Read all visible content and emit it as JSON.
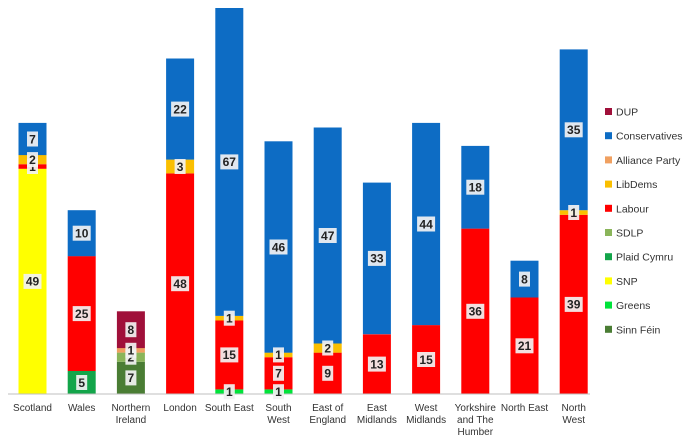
{
  "chart_data": {
    "type": "bar",
    "stacked": true,
    "categories": [
      [
        "Scotland"
      ],
      [
        "Wales"
      ],
      [
        "Northern",
        "Ireland"
      ],
      [
        "London"
      ],
      [
        "South East"
      ],
      [
        "South",
        "West"
      ],
      [
        "East of",
        "England"
      ],
      [
        "East",
        "Midlands"
      ],
      [
        "West",
        "Midlands"
      ],
      [
        "Yorkshire",
        "and The",
        "Humber"
      ],
      [
        "North East"
      ],
      [
        "North",
        "West"
      ]
    ],
    "series": [
      {
        "name": "Sinn Féin",
        "color": "#4a7d34",
        "values": [
          0,
          0,
          7,
          0,
          0,
          0,
          0,
          0,
          0,
          0,
          0,
          0
        ]
      },
      {
        "name": "Greens",
        "color": "#00e33a",
        "values": [
          0,
          0,
          0,
          0,
          1,
          1,
          0,
          0,
          0,
          0,
          0,
          0
        ]
      },
      {
        "name": "SNP",
        "color": "#ffff00",
        "values": [
          49,
          0,
          0,
          0,
          0,
          0,
          0,
          0,
          0,
          0,
          0,
          0
        ]
      },
      {
        "name": "Plaid Cymru",
        "color": "#13a54a",
        "values": [
          0,
          5,
          0,
          0,
          0,
          0,
          0,
          0,
          0,
          0,
          0,
          0
        ]
      },
      {
        "name": "SDLP",
        "color": "#8ab55a",
        "values": [
          0,
          0,
          2,
          0,
          0,
          0,
          0,
          0,
          0,
          0,
          0,
          0
        ]
      },
      {
        "name": "Labour",
        "color": "#ff0000",
        "values": [
          1,
          25,
          0,
          48,
          15,
          7,
          9,
          13,
          15,
          36,
          21,
          39
        ]
      },
      {
        "name": "LibDems",
        "color": "#fabf00",
        "values": [
          2,
          0,
          0,
          3,
          1,
          1,
          2,
          0,
          0,
          0,
          0,
          1
        ]
      },
      {
        "name": "Alliance Party",
        "color": "#f0a060",
        "values": [
          0,
          0,
          1,
          0,
          0,
          0,
          0,
          0,
          0,
          0,
          0,
          0
        ]
      },
      {
        "name": "Conservatives",
        "color": "#0d6cc4",
        "values": [
          7,
          10,
          0,
          22,
          67,
          46,
          47,
          33,
          44,
          18,
          8,
          35
        ]
      },
      {
        "name": "DUP",
        "color": "#a0103a",
        "values": [
          0,
          0,
          8,
          0,
          0,
          0,
          0,
          0,
          0,
          0,
          0,
          0
        ]
      }
    ],
    "legend": [
      "DUP",
      "Conservatives",
      "Alliance Party",
      "LibDems",
      "Labour",
      "SDLP",
      "Plaid Cymru",
      "SNP",
      "Greens",
      "Sinn Féin"
    ],
    "legend_position": "right",
    "title": "",
    "xlabel": "",
    "ylabel": "",
    "ylim": [
      0,
      84
    ],
    "grid": false
  }
}
